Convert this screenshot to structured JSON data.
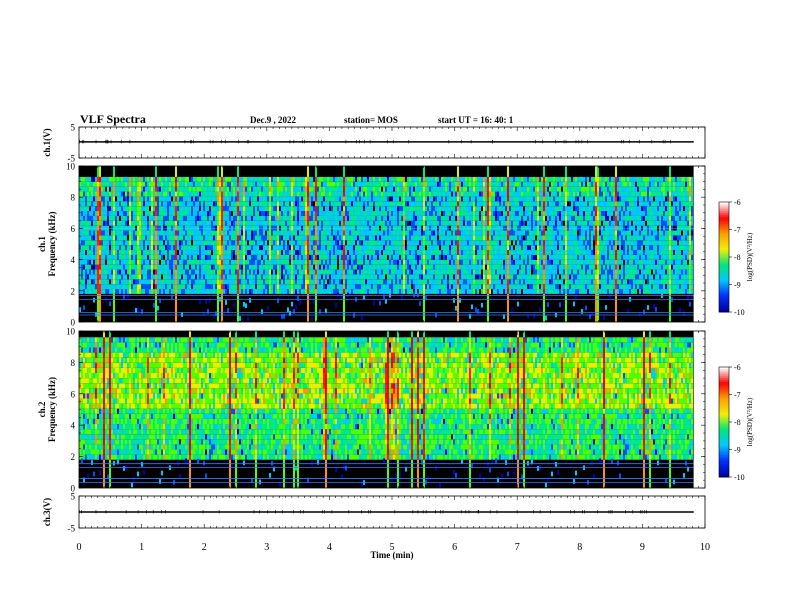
{
  "header": {
    "title": "VLF Spectra",
    "date": "Dec.9  , 2022",
    "station": "station= MOS",
    "start_ut": "start  UT =   16: 40: 1"
  },
  "chart_data": {
    "type": "heatmap",
    "xlabel": "Time  (min)",
    "xlim": [
      0,
      10
    ],
    "x_ticks": [
      "0",
      "1",
      "2",
      "3",
      "4",
      "5",
      "6",
      "7",
      "8",
      "9",
      "10"
    ],
    "data_end_min": 9.82,
    "panels": [
      {
        "id": "ch1_waveform",
        "type": "line",
        "ylabel": "ch.1(V)",
        "ylim": [
          -5,
          5
        ],
        "y_ticks": [
          "5",
          "-5"
        ],
        "level": 0
      },
      {
        "id": "ch1_spectrogram",
        "type": "heatmap",
        "ylabel": "ch.1\nFrequency  (kHz)",
        "ylim": [
          0,
          10
        ],
        "y_ticks": [
          "0",
          "2",
          "4",
          "6",
          "8",
          "10"
        ],
        "colorbar": {
          "label": "log(PSD)(V²/Hz)",
          "range": [
            -10,
            -6
          ],
          "ticks": [
            "-6",
            "-7",
            "-8",
            "-9",
            "-10"
          ]
        }
      },
      {
        "id": "ch2_spectrogram",
        "type": "heatmap",
        "ylabel": "ch.2\nFrequency  (kHz)",
        "ylim": [
          0,
          10
        ],
        "y_ticks": [
          "0",
          "2",
          "4",
          "6",
          "8",
          "10"
        ],
        "colorbar": {
          "label": "log(PSD)(V²/Hz)",
          "range": [
            -10,
            -6
          ],
          "ticks": [
            "-6",
            "-7",
            "-8",
            "-9",
            "-10"
          ]
        }
      },
      {
        "id": "ch3_waveform",
        "type": "line",
        "ylabel": "ch.3(V)",
        "ylim": [
          -5,
          5
        ],
        "y_ticks": [
          "5",
          "-5"
        ],
        "level": 0
      }
    ],
    "colormap": [
      "#000000",
      "#0000b4",
      "#0050ff",
      "#00c8ff",
      "#00e88c",
      "#50ff00",
      "#e6f000",
      "#ff9600",
      "#ff1e00",
      "#ff0000"
    ]
  }
}
